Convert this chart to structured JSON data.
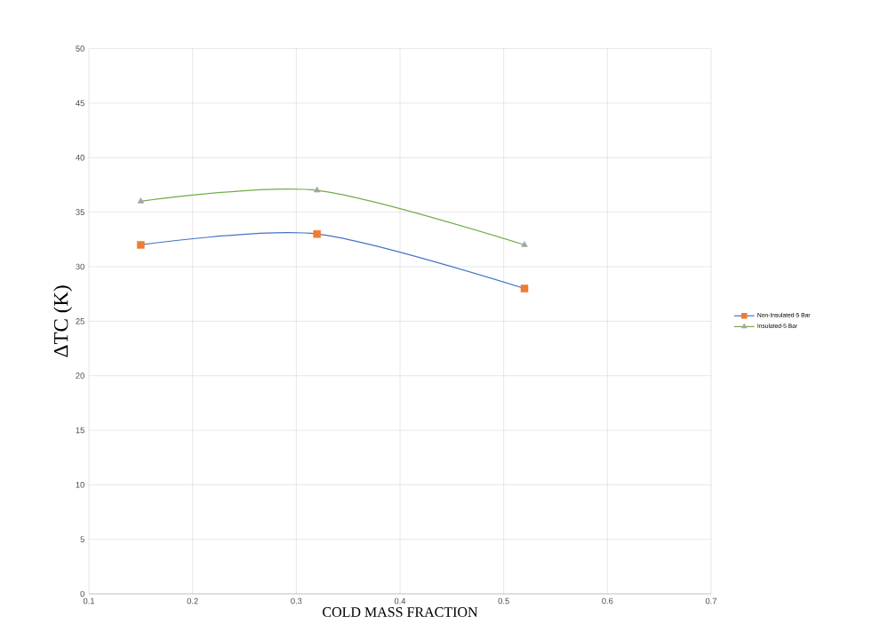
{
  "chart_data": {
    "type": "line",
    "xlabel": "COLD MASS FRACTION",
    "ylabel": "ΔTC  (K)",
    "xlim": [
      0.1,
      0.7
    ],
    "xticks": [
      0.1,
      0.2,
      0.3,
      0.4,
      0.5,
      0.6,
      0.7
    ],
    "ylim": [
      0,
      50
    ],
    "yticks": [
      0,
      5,
      10,
      15,
      20,
      25,
      30,
      35,
      40,
      45,
      50
    ],
    "grid": true,
    "legend": "right",
    "line_style": "solid",
    "series": [
      {
        "name": "Non-Insulated-5 Bar",
        "color": "#4472c4",
        "colors": [
          "#ed7d31",
          "#ed7d31",
          "#ed7d31"
        ],
        "marker": "square",
        "x": [
          0.15,
          0.32,
          0.52
        ],
        "values": [
          32,
          33,
          28
        ]
      },
      {
        "name": "Insulated-5 Bar",
        "color": "#70ad47",
        "colors": [
          "#a5a5a5",
          "#a5a5a5",
          "#a5a5a5"
        ],
        "marker": "triangle",
        "x": [
          0.15,
          0.32,
          0.52
        ],
        "values": [
          36,
          37,
          32
        ]
      }
    ]
  }
}
